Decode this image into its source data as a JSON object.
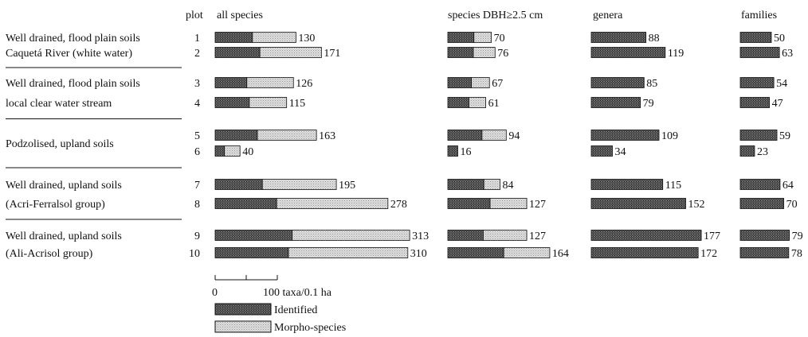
{
  "chart_data": {
    "type": "bar",
    "stacked": true,
    "orientation": "horizontal",
    "plot_header": "plot",
    "plots": [
      "1",
      "2",
      "3",
      "4",
      "5",
      "6",
      "7",
      "8",
      "9",
      "10"
    ],
    "groups": [
      {
        "label_lines": [
          "Well drained, flood plain soils",
          "Caquetá River (white water)"
        ],
        "plots": [
          "1",
          "2"
        ]
      },
      {
        "label_lines": [
          "Well drained, flood plain soils",
          "local clear water stream"
        ],
        "plots": [
          "3",
          "4"
        ]
      },
      {
        "label_lines": [
          "Podzolised, upland soils"
        ],
        "plots": [
          "5",
          "6"
        ]
      },
      {
        "label_lines": [
          "Well drained, upland soils",
          "(Acri-Ferralsol group)"
        ],
        "plots": [
          "7",
          "8"
        ]
      },
      {
        "label_lines": [
          "Well drained, upland soils",
          "(Ali-Acrisol group)"
        ],
        "plots": [
          "9",
          "10"
        ]
      }
    ],
    "panels": [
      {
        "title": "all species",
        "totals": [
          130,
          171,
          126,
          115,
          163,
          40,
          195,
          278,
          313,
          310
        ],
        "identified": [
          60,
          72,
          51,
          55,
          68,
          15,
          76,
          99,
          124,
          118
        ],
        "morpho": [
          70,
          99,
          75,
          60,
          95,
          25,
          119,
          179,
          189,
          192
        ]
      },
      {
        "title": "species DBH≥2.5 cm",
        "totals": [
          70,
          76,
          67,
          61,
          94,
          16,
          84,
          127,
          127,
          164
        ],
        "identified": [
          42,
          41,
          38,
          34,
          55,
          16,
          58,
          68,
          57,
          90
        ],
        "morpho": [
          28,
          35,
          29,
          27,
          39,
          0,
          26,
          59,
          70,
          74
        ]
      },
      {
        "title": "genera",
        "totals": [
          88,
          119,
          85,
          79,
          109,
          34,
          115,
          152,
          177,
          172
        ],
        "identified": [
          88,
          119,
          85,
          79,
          109,
          34,
          115,
          152,
          177,
          172
        ],
        "morpho": [
          0,
          0,
          0,
          0,
          0,
          0,
          0,
          0,
          0,
          0
        ]
      },
      {
        "title": "families",
        "totals": [
          50,
          63,
          54,
          47,
          59,
          23,
          64,
          70,
          79,
          78
        ],
        "identified": [
          50,
          63,
          54,
          47,
          59,
          23,
          64,
          70,
          79,
          78
        ],
        "morpho": [
          0,
          0,
          0,
          0,
          0,
          0,
          0,
          0,
          0,
          0
        ]
      }
    ],
    "scale_bar": {
      "start_label": "0",
      "end_label": "100 taxa/0.1 ha",
      "value": 100
    },
    "legend": [
      {
        "label": "Identified",
        "pattern": "dark"
      },
      {
        "label": "Morpho-species",
        "pattern": "light"
      }
    ],
    "colors": {
      "identified": "#555555",
      "morpho": "#cfcfcf",
      "ink": "#111111"
    }
  }
}
